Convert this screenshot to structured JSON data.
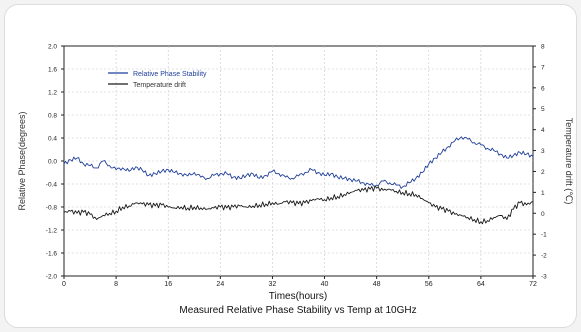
{
  "chart_data": {
    "type": "line",
    "title": "Measured Relative Phase Stability vs Temp at 10GHz",
    "xlabel": "Times(hours)",
    "ylabel_left": "Relative Phase(degrees)",
    "ylabel_right": "Temperature drift (℃)",
    "xlim": [
      0,
      72
    ],
    "ylim_left": [
      -2.0,
      2.0
    ],
    "ylim_right": [
      -3,
      8
    ],
    "x_ticks": [
      0,
      8,
      16,
      24,
      32,
      40,
      48,
      56,
      64,
      72
    ],
    "y_left_ticks": [
      "2.0",
      "1.6",
      "1.2",
      "0.8",
      "0.4",
      "0.0",
      "-0.4",
      "-0.8",
      "-1.2",
      "-1.6",
      "-2.0"
    ],
    "y_right_ticks": [
      "8",
      "7",
      "6",
      "5",
      "4",
      "3",
      "2",
      "1",
      "0",
      "-1",
      "-2",
      "-3"
    ],
    "grid": true,
    "legend_position": "top-left",
    "series": [
      {
        "name": "Relative Phase Stability",
        "axis": "left",
        "color": "#1f3f9a",
        "x": [
          0,
          1,
          2,
          3,
          4,
          5,
          6,
          7,
          8,
          9,
          10,
          11,
          12,
          13,
          14,
          15,
          16,
          17,
          18,
          19,
          20,
          21,
          22,
          23,
          24,
          25,
          26,
          27,
          28,
          29,
          30,
          31,
          32,
          33,
          34,
          35,
          36,
          37,
          38,
          39,
          40,
          41,
          42,
          43,
          44,
          45,
          46,
          47,
          48,
          49,
          50,
          51,
          52,
          53,
          54,
          55,
          56,
          57,
          58,
          59,
          60,
          61,
          62,
          63,
          64,
          65,
          66,
          67,
          68,
          69,
          70,
          71,
          72
        ],
        "values": [
          -0.05,
          0.02,
          0.05,
          -0.05,
          -0.08,
          -0.12,
          0.0,
          -0.08,
          -0.15,
          -0.12,
          -0.18,
          -0.1,
          -0.16,
          -0.25,
          -0.22,
          -0.18,
          -0.15,
          -0.2,
          -0.22,
          -0.26,
          -0.2,
          -0.28,
          -0.3,
          -0.25,
          -0.22,
          -0.22,
          -0.28,
          -0.3,
          -0.25,
          -0.22,
          -0.3,
          -0.25,
          -0.18,
          -0.22,
          -0.28,
          -0.3,
          -0.26,
          -0.2,
          -0.15,
          -0.2,
          -0.25,
          -0.22,
          -0.28,
          -0.3,
          -0.32,
          -0.35,
          -0.38,
          -0.42,
          -0.42,
          -0.35,
          -0.38,
          -0.42,
          -0.45,
          -0.38,
          -0.3,
          -0.2,
          -0.05,
          0.05,
          0.15,
          0.25,
          0.35,
          0.42,
          0.38,
          0.32,
          0.28,
          0.22,
          0.18,
          0.12,
          0.05,
          0.1,
          0.15,
          0.12,
          0.08
        ]
      },
      {
        "name": "Temperature drift",
        "axis": "right",
        "color": "#1a1a1a",
        "x": [
          0,
          1,
          2,
          3,
          4,
          5,
          6,
          7,
          8,
          9,
          10,
          11,
          12,
          13,
          14,
          15,
          16,
          17,
          18,
          19,
          20,
          21,
          22,
          23,
          24,
          25,
          26,
          27,
          28,
          29,
          30,
          31,
          32,
          33,
          34,
          35,
          36,
          37,
          38,
          39,
          40,
          41,
          42,
          43,
          44,
          45,
          46,
          47,
          48,
          49,
          50,
          51,
          52,
          53,
          54,
          55,
          56,
          57,
          58,
          59,
          60,
          61,
          62,
          63,
          64,
          65,
          66,
          67,
          68,
          69,
          70,
          71,
          72
        ],
        "values": [
          0.05,
          0.1,
          0.0,
          0.05,
          -0.05,
          -0.3,
          -0.1,
          0.0,
          0.1,
          0.3,
          0.35,
          0.5,
          0.45,
          0.4,
          0.35,
          0.4,
          0.3,
          0.25,
          0.3,
          0.25,
          0.3,
          0.25,
          0.2,
          0.25,
          0.3,
          0.25,
          0.3,
          0.35,
          0.3,
          0.35,
          0.4,
          0.45,
          0.5,
          0.45,
          0.55,
          0.5,
          0.45,
          0.5,
          0.6,
          0.7,
          0.65,
          0.75,
          0.8,
          0.9,
          1.0,
          1.1,
          1.1,
          1.15,
          1.2,
          1.1,
          1.15,
          1.05,
          1.0,
          0.95,
          0.9,
          0.7,
          0.5,
          0.3,
          0.2,
          0.1,
          -0.05,
          -0.1,
          -0.2,
          -0.3,
          -0.4,
          -0.35,
          -0.2,
          -0.1,
          -0.3,
          0.2,
          0.5,
          0.4,
          0.55
        ]
      }
    ]
  }
}
